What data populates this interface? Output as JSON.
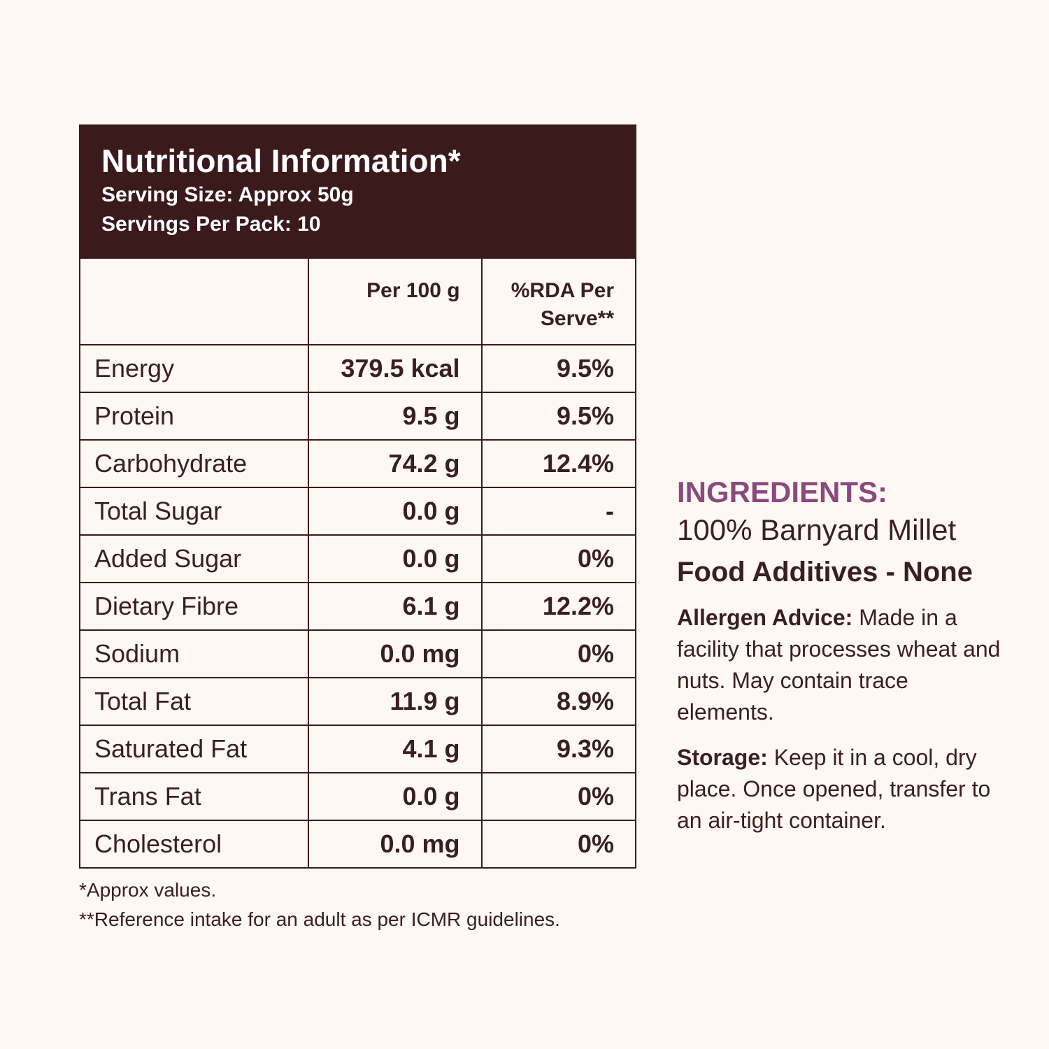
{
  "header": {
    "title": "Nutritional Information*",
    "serving_size": "Serving Size: Approx 50g",
    "servings_per_pack": "Servings Per Pack: 10"
  },
  "table": {
    "headers": [
      "Per 100 g",
      "%RDA Per Serve**"
    ],
    "rows": [
      [
        "Energy",
        "379.5 kcal",
        "9.5%"
      ],
      [
        "Protein",
        "9.5 g",
        "9.5%"
      ],
      [
        "Carbohydrate",
        "74.2 g",
        "12.4%"
      ],
      [
        "Total Sugar",
        "0.0 g",
        "-"
      ],
      [
        "Added Sugar",
        "0.0 g",
        "0%"
      ],
      [
        "Dietary Fibre",
        "6.1 g",
        "12.2%"
      ],
      [
        "Sodium",
        "0.0 mg",
        "0%"
      ],
      [
        "Total Fat",
        "11.9 g",
        "8.9%"
      ],
      [
        "Saturated Fat",
        "4.1 g",
        "9.3%"
      ],
      [
        "Trans Fat",
        "0.0 g",
        "0%"
      ],
      [
        "Cholesterol",
        "0.0 mg",
        "0%"
      ]
    ]
  },
  "footnotes": [
    "*Approx values.",
    "**Reference intake for an adult as per ICMR guidelines."
  ],
  "side": {
    "ingredients_label": "INGREDIENTS:",
    "ingredients": "100% Barnyard Millet",
    "additives": "Food Additives - None",
    "allergen_label": "Allergen Advice:",
    "allergen_text": "Made in a facility that processes wheat and nuts. May contain trace elements.",
    "storage_label": "Storage:",
    "storage_text": "Keep it in a cool, dry place. Once opened, transfer to an air-tight container."
  }
}
